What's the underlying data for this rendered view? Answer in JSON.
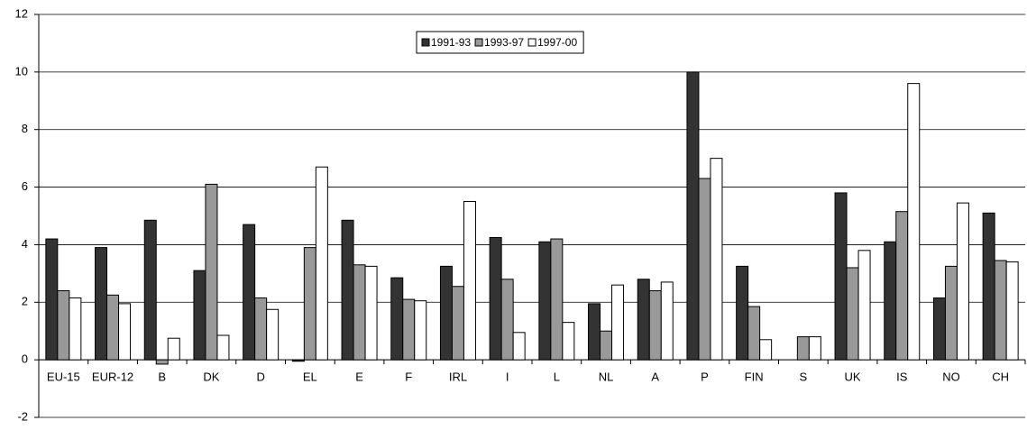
{
  "chart_data": {
    "type": "bar",
    "categories": [
      "EU-15",
      "EUR-12",
      "B",
      "DK",
      "D",
      "EL",
      "E",
      "F",
      "IRL",
      "I",
      "L",
      "NL",
      "A",
      "P",
      "FIN",
      "S",
      "UK",
      "IS",
      "NO",
      "CH"
    ],
    "series": [
      {
        "name": "1991-93",
        "color": "#333333",
        "values": [
          4.2,
          3.9,
          4.85,
          3.1,
          4.7,
          -0.05,
          4.85,
          2.85,
          3.25,
          4.25,
          4.1,
          1.95,
          2.8,
          10.0,
          3.25,
          null,
          5.8,
          4.1,
          2.15,
          5.1
        ]
      },
      {
        "name": "1993-97",
        "color": "#999999",
        "values": [
          2.4,
          2.25,
          -0.15,
          6.1,
          2.15,
          3.9,
          3.3,
          2.1,
          2.55,
          2.8,
          4.2,
          1.0,
          2.4,
          6.3,
          1.85,
          0.8,
          3.2,
          5.15,
          3.25,
          3.45
        ]
      },
      {
        "name": "1997-00",
        "color": "#ffffff",
        "values": [
          2.15,
          1.95,
          0.75,
          0.85,
          1.75,
          6.7,
          3.25,
          2.05,
          5.5,
          0.95,
          1.3,
          2.6,
          2.7,
          7.0,
          0.7,
          0.8,
          3.8,
          9.6,
          5.45,
          3.4
        ]
      }
    ],
    "ylim": [
      -2,
      12
    ],
    "yticks": [
      -2,
      0,
      2,
      4,
      6,
      8,
      10,
      12
    ],
    "grid": true,
    "legend": "top"
  }
}
